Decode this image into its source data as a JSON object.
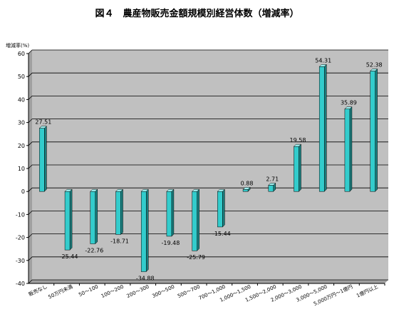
{
  "chart_data": {
    "type": "bar",
    "title": "図４　農産物販売金額規模別経営体数（増減率）",
    "ylabel": "増減率(%)",
    "xlabel": "",
    "ylim": [
      -40,
      60
    ],
    "yticks": [
      60,
      50,
      40,
      30,
      20,
      10,
      0,
      -10,
      -20,
      -30,
      -40
    ],
    "grid": true,
    "categories": [
      "販売なし",
      "50万円未満",
      "50～100",
      "100～200",
      "200～300",
      "300～500",
      "500～700",
      "700～1,000",
      "1,000～1,500",
      "1,500～2,000",
      "2,000～3,000",
      "3,000～5,000",
      "5,000万円～1億円",
      "1億円以上"
    ],
    "values": [
      27.51,
      -25.44,
      -22.76,
      -18.71,
      -34.88,
      -19.48,
      -25.79,
      -15.44,
      0.88,
      2.71,
      19.58,
      54.31,
      35.89,
      52.38
    ],
    "value_labels": [
      "27.51",
      "-25.44",
      "-22.76",
      "-18.71",
      "-34.88",
      "-19.48",
      "-25.79",
      "-15.44",
      "0.88",
      "2.71",
      "19.58",
      "54.31",
      "35.89",
      "52.38"
    ],
    "colors": {
      "plot_bg": "#c0c0c0",
      "bar_front": "#33cccc",
      "bar_side": "#1a8080",
      "bar_top": "#9ff0f0",
      "grid": "#000000"
    }
  }
}
